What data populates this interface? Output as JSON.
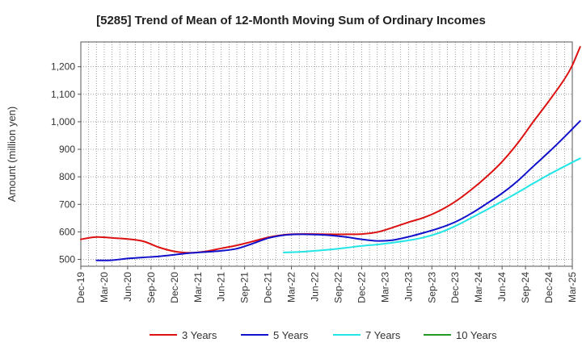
{
  "chart_data": {
    "type": "line",
    "title": "[5285]  Trend of Mean of 12-Month Moving Sum of Ordinary Incomes",
    "xlabel": "",
    "ylabel": "Amount (million yen)",
    "ylim": [
      475,
      1290
    ],
    "yticks": [
      500,
      600,
      700,
      800,
      900,
      1000,
      1100,
      1200
    ],
    "ytick_labels": [
      "500",
      "600",
      "700",
      "800",
      "900",
      "1,000",
      "1,100",
      "1,200"
    ],
    "xlim": [
      0,
      63
    ],
    "xticks": [
      0,
      3,
      6,
      9,
      12,
      15,
      18,
      21,
      24,
      27,
      30,
      33,
      36,
      39,
      42,
      45,
      48,
      51,
      54,
      57,
      60,
      63
    ],
    "xtick_labels": [
      "Dec-19",
      "Mar-20",
      "Jun-20",
      "Sep-20",
      "Dec-20",
      "Mar-21",
      "Jun-21",
      "Sep-21",
      "Dec-21",
      "Mar-22",
      "Jun-22",
      "Sep-22",
      "Dec-22",
      "Mar-23",
      "Jun-23",
      "Sep-23",
      "Dec-23",
      "Mar-24",
      "Jun-24",
      "Sep-24",
      "Dec-24",
      "Mar-25"
    ],
    "grid": true,
    "legend_position": "bottom",
    "series": [
      {
        "name": "3 Years",
        "color": "#dd1111",
        "points": [
          [
            0,
            573
          ],
          [
            2,
            581
          ],
          [
            4,
            578
          ],
          [
            6,
            574
          ],
          [
            8,
            566
          ],
          [
            10,
            544
          ],
          [
            12,
            529
          ],
          [
            14,
            524
          ],
          [
            16,
            529
          ],
          [
            18,
            540
          ],
          [
            20,
            551
          ],
          [
            22,
            565
          ],
          [
            24,
            580
          ],
          [
            26,
            589
          ],
          [
            28,
            592
          ],
          [
            30,
            592
          ],
          [
            32,
            591
          ],
          [
            34,
            591
          ],
          [
            36,
            592
          ],
          [
            38,
            599
          ],
          [
            40,
            616
          ],
          [
            42,
            635
          ],
          [
            44,
            652
          ],
          [
            46,
            677
          ],
          [
            48,
            710
          ],
          [
            50,
            752
          ],
          [
            52,
            800
          ],
          [
            54,
            855
          ],
          [
            56,
            922
          ],
          [
            58,
            1000
          ],
          [
            60,
            1075
          ],
          [
            62,
            1155
          ],
          [
            63,
            1205
          ],
          [
            64,
            1272
          ]
        ]
      },
      {
        "name": "5 Years",
        "color": "#1111cc",
        "points": [
          [
            2,
            496
          ],
          [
            4,
            497
          ],
          [
            6,
            503
          ],
          [
            8,
            507
          ],
          [
            10,
            511
          ],
          [
            12,
            517
          ],
          [
            14,
            523
          ],
          [
            16,
            527
          ],
          [
            18,
            531
          ],
          [
            20,
            539
          ],
          [
            22,
            557
          ],
          [
            24,
            577
          ],
          [
            26,
            588
          ],
          [
            28,
            591
          ],
          [
            30,
            590
          ],
          [
            32,
            587
          ],
          [
            34,
            581
          ],
          [
            36,
            573
          ],
          [
            38,
            567
          ],
          [
            40,
            570
          ],
          [
            42,
            582
          ],
          [
            44,
            597
          ],
          [
            46,
            614
          ],
          [
            48,
            636
          ],
          [
            50,
            666
          ],
          [
            52,
            702
          ],
          [
            54,
            740
          ],
          [
            56,
            785
          ],
          [
            58,
            838
          ],
          [
            60,
            890
          ],
          [
            62,
            945
          ],
          [
            64,
            1003
          ]
        ]
      },
      {
        "name": "7 Years",
        "color": "#22e5e5",
        "points": [
          [
            26,
            525
          ],
          [
            28,
            527
          ],
          [
            30,
            531
          ],
          [
            32,
            536
          ],
          [
            34,
            542
          ],
          [
            36,
            549
          ],
          [
            38,
            554
          ],
          [
            40,
            561
          ],
          [
            42,
            569
          ],
          [
            44,
            580
          ],
          [
            46,
            597
          ],
          [
            48,
            621
          ],
          [
            50,
            650
          ],
          [
            52,
            680
          ],
          [
            54,
            711
          ],
          [
            56,
            743
          ],
          [
            58,
            776
          ],
          [
            60,
            808
          ],
          [
            62,
            838
          ],
          [
            64,
            867
          ]
        ]
      },
      {
        "name": "10 Years",
        "color": "#229922",
        "points": []
      }
    ]
  }
}
